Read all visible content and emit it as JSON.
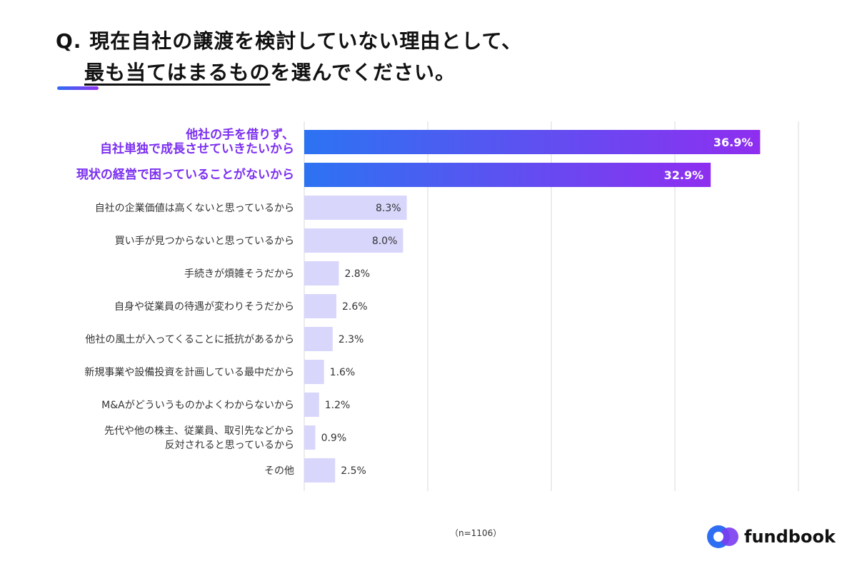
{
  "title": {
    "prefix": "Q. ",
    "line1": "現在自社の譲渡を検討していない理由として、",
    "line2_underlined": "最も当てはまるもの",
    "line2_rest": "を選んでください。"
  },
  "sample_note": "（n=1106）",
  "brand": {
    "name": "fundbook"
  },
  "colors": {
    "highlight_label": "#7b2ff0",
    "normal_label": "#333333",
    "bar_light": "#d8d6fb",
    "bar_gradient_start": "#2c73f2",
    "bar_gradient_end": "#8f2ef0",
    "grid": "#d9d9d9",
    "logo_blue": "#2f6df2",
    "logo_purple": "#7a3cf0"
  },
  "chart_data": {
    "type": "bar",
    "orientation": "horizontal",
    "xlim": [
      0,
      40
    ],
    "grid": true,
    "categories": [
      [
        "他社の手を借りず、",
        "自社単独で成長させていきたいから"
      ],
      [
        "現状の経営で困っていることがないから"
      ],
      [
        "自社の企業価値は高くないと思っているから"
      ],
      [
        "買い手が見つからないと思っているから"
      ],
      [
        "手続きが煩雑そうだから"
      ],
      [
        "自身や従業員の待遇が変わりそうだから"
      ],
      [
        "他社の風土が入ってくることに抵抗があるから"
      ],
      [
        "新規事業や設備投資を計画している最中だから"
      ],
      [
        "M&Aがどういうものかよくわからないから"
      ],
      [
        "先代や他の株主、従業員、取引先などから",
        "反対されると思っているから"
      ],
      [
        "その他"
      ]
    ],
    "values": [
      36.9,
      32.9,
      8.3,
      8.0,
      2.8,
      2.6,
      2.3,
      1.6,
      1.2,
      0.9,
      2.5
    ],
    "value_labels": [
      "36.9%",
      "32.9%",
      "8.3%",
      "8.0%",
      "2.8%",
      "2.6%",
      "2.3%",
      "1.6%",
      "1.2%",
      "0.9%",
      "2.5%"
    ],
    "highlighted": [
      true,
      true,
      false,
      false,
      false,
      false,
      false,
      false,
      false,
      false,
      false
    ]
  }
}
